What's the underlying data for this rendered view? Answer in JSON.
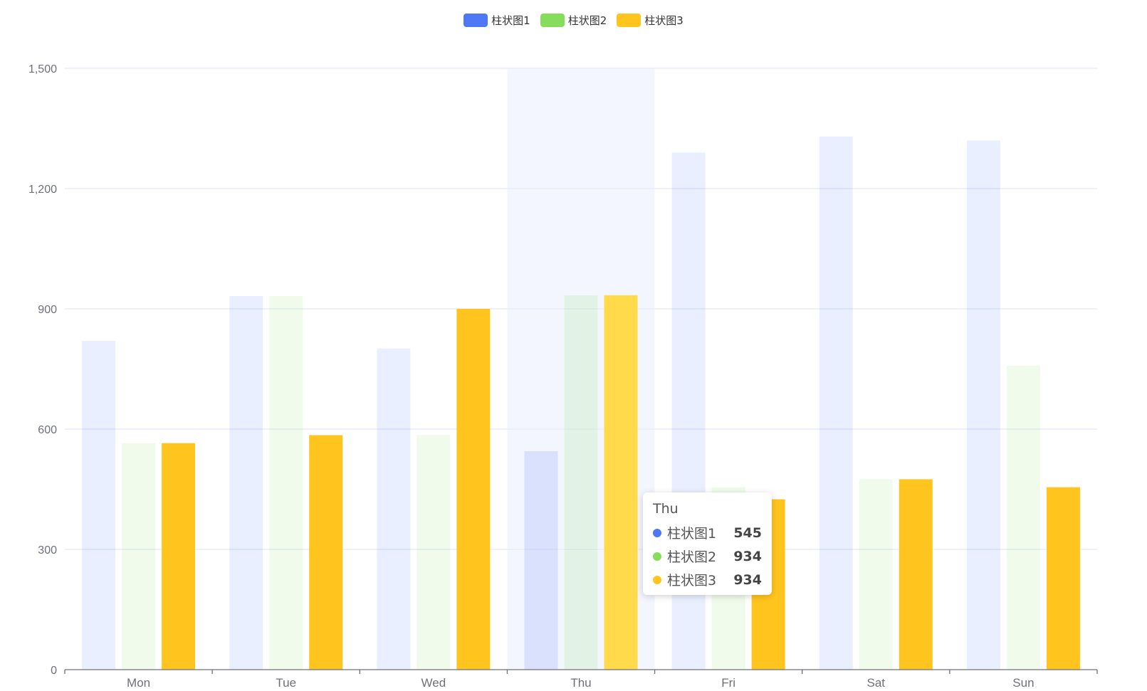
{
  "legend": [
    {
      "label": "柱状图1",
      "color": "#4e78f5"
    },
    {
      "label": "柱状图2",
      "color": "#86dd5b"
    },
    {
      "label": "柱状图3",
      "color": "#ffc51e"
    }
  ],
  "tooltip": {
    "title": "Thu",
    "rows": [
      {
        "name": "柱状图1",
        "value": "545",
        "color": "#4e78f5"
      },
      {
        "name": "柱状图2",
        "value": "934",
        "color": "#86dd5b"
      },
      {
        "name": "柱状图3",
        "value": "934",
        "color": "#ffc51e"
      }
    ]
  },
  "chart_data": {
    "type": "bar",
    "categories": [
      "Mon",
      "Tue",
      "Wed",
      "Thu",
      "Fri",
      "Sat",
      "Sun"
    ],
    "series": [
      {
        "name": "柱状图1",
        "values": [
          820,
          932,
          801,
          545,
          1290,
          1330,
          1320
        ],
        "color": "#4e78f5",
        "faded": true
      },
      {
        "name": "柱状图2",
        "values": [
          565,
          932,
          585,
          934,
          455,
          475,
          758
        ],
        "color": "#86dd5b",
        "faded": true
      },
      {
        "name": "柱状图3",
        "values": [
          565,
          585,
          900,
          934,
          425,
          475,
          455
        ],
        "color": "#ffc51e",
        "faded": false
      }
    ],
    "ylim": [
      0,
      1500
    ],
    "yticks": [
      "0",
      "300",
      "600",
      "900",
      "1,200",
      "1,500"
    ],
    "grid": true,
    "legend_position": "top-center",
    "highlighted_category": "Thu"
  }
}
